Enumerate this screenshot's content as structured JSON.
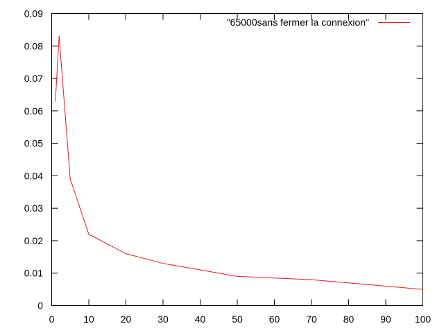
{
  "chart_data": {
    "type": "line",
    "title": "",
    "xlabel": "",
    "ylabel": "",
    "xlim": [
      0,
      100
    ],
    "ylim": [
      0,
      0.09
    ],
    "x_ticks": [
      "0",
      "10",
      "20",
      "30",
      "40",
      "50",
      "60",
      "70",
      "80",
      "90",
      "100"
    ],
    "y_ticks": [
      "0",
      "0.01",
      "0.02",
      "0.03",
      "0.04",
      "0.05",
      "0.06",
      "0.07",
      "0.08",
      "0.09"
    ],
    "grid": false,
    "legend_position": "top-right",
    "series": [
      {
        "name": "\"65000sans fermer la connexion\"",
        "color": "#e41a1c",
        "points": [
          {
            "x": 1,
            "y": 0.063
          },
          {
            "x": 2,
            "y": 0.083
          },
          {
            "x": 5,
            "y": 0.039
          },
          {
            "x": 10,
            "y": 0.022
          },
          {
            "x": 20,
            "y": 0.016
          },
          {
            "x": 30,
            "y": 0.013
          },
          {
            "x": 40,
            "y": 0.011
          },
          {
            "x": 50,
            "y": 0.009
          },
          {
            "x": 70,
            "y": 0.008
          },
          {
            "x": 100,
            "y": 0.005
          }
        ]
      }
    ]
  }
}
